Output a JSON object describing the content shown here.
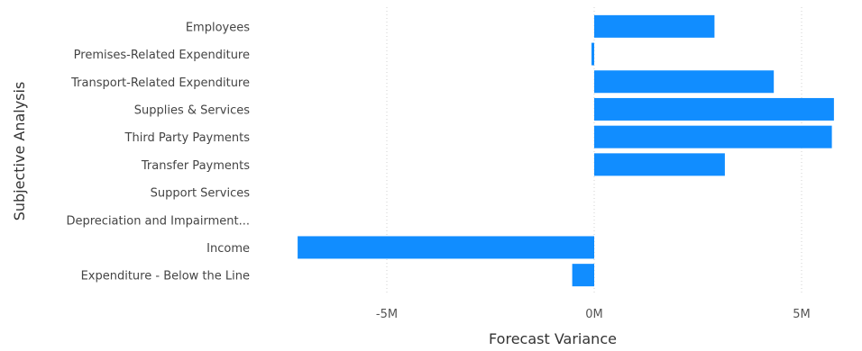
{
  "chart_data": {
    "type": "bar",
    "orientation": "horizontal",
    "xlabel": "Forecast Variance",
    "ylabel": "Subjective Analysis",
    "categories": [
      "Employees",
      "Premises-Related Expenditure",
      "Transport-Related Expenditure",
      "Supplies & Services",
      "Third Party Payments",
      "Transfer Payments",
      "Support Services",
      "Depreciation and Impairment...",
      "Income",
      "Expenditure - Below the Line"
    ],
    "values": [
      2900000,
      -50000,
      4330000,
      5780000,
      5730000,
      3150000,
      0,
      0,
      -7150000,
      -530000
    ],
    "xlim": [
      -7300000,
      5800000
    ],
    "xticks": [
      -5000000,
      0,
      5000000
    ],
    "xtick_labels": [
      "-5M",
      "0M",
      "5M"
    ],
    "bar_color": "#118dff",
    "gridlines": "vertical-dotted"
  }
}
